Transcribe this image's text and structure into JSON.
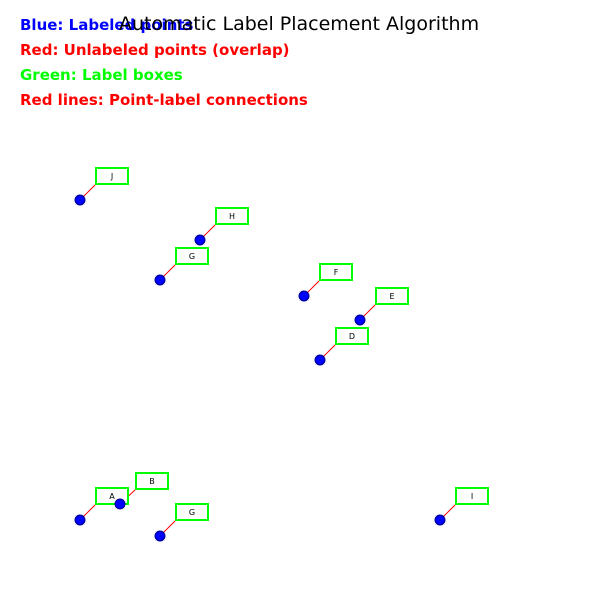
{
  "title": "Automatic Label Placement Algorithm",
  "legend": [
    {
      "text": "Blue: Labeled points",
      "color": "#0000ff"
    },
    {
      "text": "Red: Unlabeled points (overlap)",
      "color": "#ff0000"
    },
    {
      "text": "Green: Label boxes",
      "color": "#00ff00"
    },
    {
      "text": "Red lines: Point-label connections",
      "color": "#ff0000"
    }
  ],
  "colors": {
    "labeled_point": "#0000ff",
    "label_box": "#00ff00",
    "connection": "#ff0000",
    "text": "#000000"
  },
  "labels": [
    "J",
    "H",
    "G",
    "F",
    "E",
    "D",
    "A",
    "B",
    "G",
    "I"
  ]
}
